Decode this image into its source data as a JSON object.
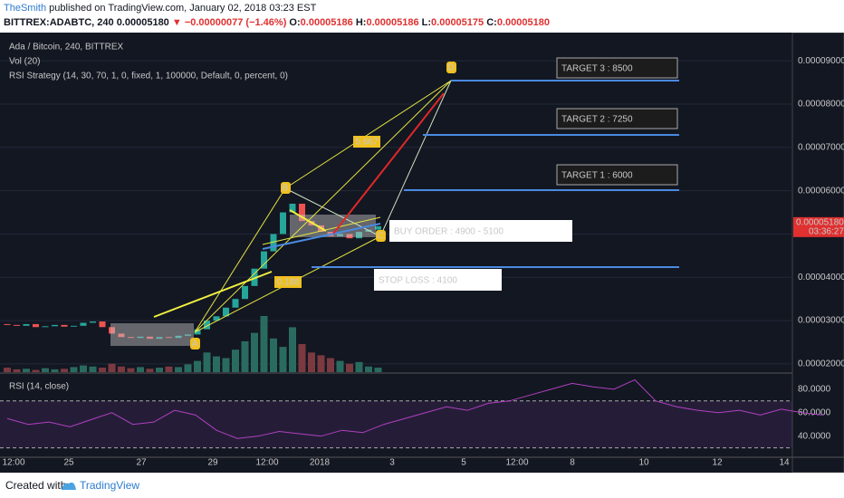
{
  "header": {
    "author": "TheSmith",
    "published": "published on TradingView.com, January 02, 2018 03:23 EST",
    "symbol": "BITTREX:ADABTC, 240",
    "last": "0.00005180",
    "change": "▼ −0.00000077 (−1.46%)",
    "ohlc": [
      {
        "k": "O:",
        "v": "0.00005186"
      },
      {
        "k": "H:",
        "v": "0.00005186"
      },
      {
        "k": "L:",
        "v": "0.00005175"
      },
      {
        "k": "C:",
        "v": "0.00005180"
      }
    ]
  },
  "legend": [
    "Ada / Bitcoin, 240, BITTREX",
    "Vol (20)",
    "RSI Strategy (14, 30, 70, 1, 0, fixed, 1, 100000, Default, 0, percent, 0)"
  ],
  "chart_data": {
    "type": "candlestick",
    "ylim": [
      1.81e-05,
      9.61e-05
    ],
    "yticks": [
      {
        "value": 9e-05,
        "label": "0.00009000"
      },
      {
        "value": 8e-05,
        "label": "0.00008000"
      },
      {
        "value": 7e-05,
        "label": "0.00007000"
      },
      {
        "value": 6e-05,
        "label": "0.00006000"
      },
      {
        "value": 5e-05,
        "label": "0.00005000"
      },
      {
        "value": 4e-05,
        "label": "0.00004000"
      },
      {
        "value": 3e-05,
        "label": "0.00003000"
      },
      {
        "value": 2e-05,
        "label": "0.00002000"
      }
    ],
    "price_tag": {
      "value": 5.18e-05,
      "label": "0.00005180",
      "countdown": "03:36:27"
    },
    "candles": [
      [
        2.92e-05,
        2.9e-05
      ],
      [
        2.9e-05,
        2.88e-05
      ],
      [
        2.88e-05,
        2.92e-05
      ],
      [
        2.92e-05,
        2.85e-05
      ],
      [
        2.85e-05,
        2.87e-05
      ],
      [
        2.87e-05,
        2.9e-05
      ],
      [
        2.9e-05,
        2.86e-05
      ],
      [
        2.86e-05,
        2.88e-05
      ],
      [
        2.88e-05,
        2.95e-05
      ],
      [
        2.95e-05,
        2.98e-05
      ],
      [
        2.98e-05,
        2.85e-05
      ],
      [
        2.85e-05,
        2.7e-05
      ],
      [
        2.7e-05,
        2.62e-05
      ],
      [
        2.62e-05,
        2.6e-05
      ],
      [
        2.6e-05,
        2.63e-05
      ],
      [
        2.63e-05,
        2.58e-05
      ],
      [
        2.58e-05,
        2.62e-05
      ],
      [
        2.62e-05,
        2.6e-05
      ],
      [
        2.6e-05,
        2.65e-05
      ],
      [
        2.65e-05,
        2.68e-05
      ],
      [
        2.68e-05,
        2.8e-05
      ],
      [
        2.8e-05,
        3e-05
      ],
      [
        3e-05,
        3.1e-05
      ],
      [
        3.1e-05,
        3.3e-05
      ],
      [
        3.3e-05,
        3.5e-05
      ],
      [
        3.5e-05,
        3.8e-05
      ],
      [
        3.8e-05,
        4.2e-05
      ],
      [
        4.2e-05,
        4.6e-05
      ],
      [
        4.6e-05,
        5e-05
      ],
      [
        5e-05,
        5.5e-05
      ],
      [
        5.5e-05,
        5.7e-05
      ],
      [
        5.7e-05,
        5.3e-05
      ],
      [
        5.3e-05,
        5.2e-05
      ],
      [
        5.2e-05,
        5.05e-05
      ],
      [
        5.05e-05,
        4.95e-05
      ],
      [
        4.95e-05,
        5e-05
      ],
      [
        5e-05,
        4.9e-05
      ],
      [
        4.9e-05,
        5.05e-05
      ],
      [
        5.05e-05,
        5.1e-05
      ],
      [
        5.1e-05,
        5.18e-05
      ]
    ],
    "volume": [
      8,
      5,
      6,
      4,
      7,
      5,
      6,
      9,
      12,
      10,
      8,
      15,
      10,
      7,
      9,
      6,
      8,
      10,
      9,
      14,
      20,
      35,
      28,
      25,
      40,
      55,
      70,
      100,
      60,
      45,
      80,
      50,
      35,
      30,
      25,
      20,
      15,
      18,
      10,
      8
    ],
    "rsi": {
      "title": "RSI (14, close)",
      "ylim": [
        22,
        93
      ],
      "yticks": [
        {
          "value": 80,
          "label": "80.0000"
        },
        {
          "value": 60,
          "label": "60.0000"
        },
        {
          "value": 40,
          "label": "40.0000"
        }
      ],
      "bands": [
        30,
        70
      ],
      "values": [
        55,
        50,
        52,
        48,
        54,
        60,
        50,
        52,
        62,
        58,
        45,
        38,
        40,
        44,
        42,
        40,
        45,
        43,
        50,
        55,
        60,
        65,
        62,
        68,
        70,
        75,
        80,
        85,
        82,
        80,
        88,
        70,
        65,
        62,
        60,
        62,
        58,
        63,
        60,
        58
      ]
    },
    "time_labels": [
      "12:00",
      "25",
      "27",
      "29",
      "12:00",
      "2018",
      "3",
      "5",
      "12:00",
      "8",
      "10",
      "12",
      "14"
    ],
    "annotations": {
      "targets": [
        "TARGET 3 : 8500",
        "TARGET 2 : 7250",
        "TARGET 1 : 6000"
      ],
      "buy": "BUY ORDER : 4900 - 5100",
      "stop": "STOP LOSS : 4100",
      "points": [
        "A",
        "B",
        "C",
        "D"
      ],
      "ratios": [
        "5.667",
        "0.188"
      ]
    }
  },
  "footer": {
    "created": "Created with",
    "brand": "TradingView"
  }
}
